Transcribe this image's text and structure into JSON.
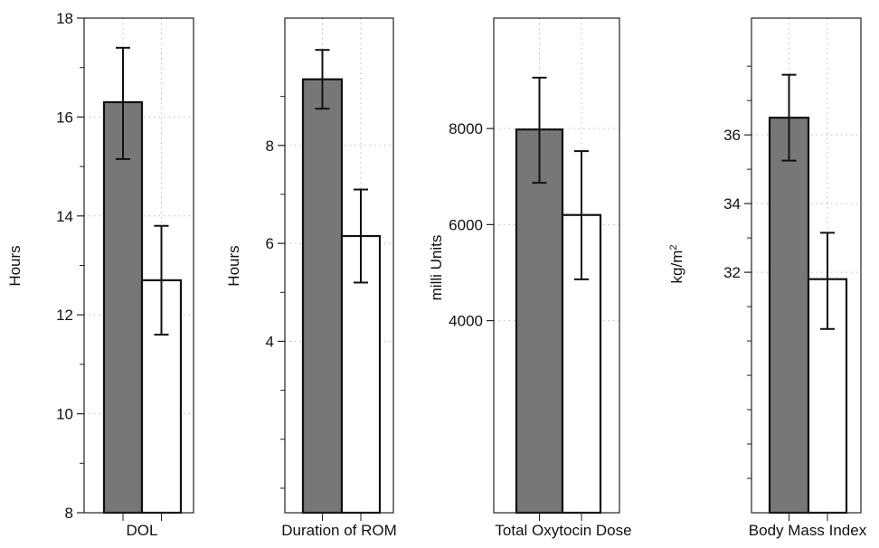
{
  "chart_data": [
    {
      "type": "bar",
      "xlabel": "DOL",
      "ylabel": "Hours",
      "ylim": [
        8,
        18
      ],
      "y_ticks": [
        8,
        10,
        12,
        14,
        16,
        18
      ],
      "y_tick_labels": [
        "8",
        "10",
        "12",
        "14",
        "16",
        "18"
      ],
      "y_minor_ticks": [
        9,
        11,
        13,
        15,
        17
      ],
      "grid": true,
      "values": [
        16.3,
        12.7
      ],
      "errors_low": [
        15.15,
        11.6
      ],
      "errors_high": [
        17.4,
        13.8
      ],
      "colors": [
        "#777777",
        "#ffffff"
      ]
    },
    {
      "type": "bar",
      "xlabel": "Duration of ROM",
      "ylabel": "Hours",
      "ylim": [
        0.5,
        10.6
      ],
      "y_ticks": [
        4,
        6,
        8
      ],
      "y_tick_labels": [
        "4",
        "6",
        "8"
      ],
      "y_minor_ticks": [
        1,
        2,
        3,
        5,
        7,
        9
      ],
      "grid": true,
      "values": [
        9.35,
        6.15
      ],
      "errors_low": [
        8.75,
        5.2
      ],
      "errors_high": [
        9.95,
        7.1
      ],
      "colors": [
        "#777777",
        "#ffffff"
      ]
    },
    {
      "type": "bar",
      "xlabel": "Total Oxytocin Dose",
      "ylabel": "milli Units",
      "ylim": [
        0,
        10300
      ],
      "y_ticks": [
        4000,
        6000,
        8000
      ],
      "y_tick_labels": [
        "4000",
        "6000",
        "8000"
      ],
      "y_minor_ticks": [],
      "grid": true,
      "values": [
        7980,
        6200
      ],
      "errors_low": [
        6870,
        4860
      ],
      "errors_high": [
        9060,
        7530
      ],
      "colors": [
        "#777777",
        "#ffffff"
      ]
    },
    {
      "type": "bar",
      "xlabel": "Body Mass Index",
      "ylabel": "kg/m",
      "ylabel_sup": "2",
      "ylim": [
        25,
        39.4
      ],
      "y_ticks": [
        32,
        34,
        36
      ],
      "y_tick_labels": [
        "32",
        "34",
        "36"
      ],
      "y_minor_ticks": [
        26,
        27,
        28,
        29,
        30,
        31,
        33,
        35,
        37,
        38
      ],
      "grid": true,
      "values": [
        36.5,
        31.8
      ],
      "errors_low": [
        35.25,
        30.35
      ],
      "errors_high": [
        37.75,
        33.15
      ],
      "colors": [
        "#777777",
        "#ffffff"
      ]
    }
  ]
}
